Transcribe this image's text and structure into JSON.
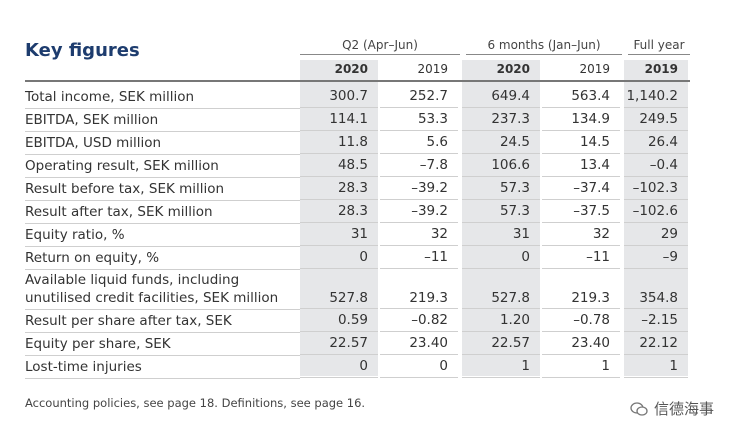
{
  "header": {
    "title": "Key figures",
    "groups": [
      "Q2 (Apr–Jun)",
      "6 months (Jan–Jun)",
      "Full year"
    ],
    "years": [
      "2020",
      "2019",
      "2020",
      "2019",
      "2019"
    ]
  },
  "table": {
    "rows": [
      [
        "Total income, SEK million",
        "300.7",
        "252.7",
        "649.4",
        "563.4",
        "1,140.2"
      ],
      [
        "EBITDA, SEK million",
        "114.1",
        "53.3",
        "237.3",
        "134.9",
        "249.5"
      ],
      [
        "EBITDA, USD million",
        "11.8",
        "5.6",
        "24.5",
        "14.5",
        "26.4"
      ],
      [
        "Operating result, SEK million",
        "48.5",
        "–7.8",
        "106.6",
        "13.4",
        "–0.4"
      ],
      [
        "Result before tax, SEK million",
        "28.3",
        "–39.2",
        "57.3",
        "–37.4",
        "–102.3"
      ],
      [
        "Result after tax, SEK million",
        "28.3",
        "–39.2",
        "57.3",
        "–37.5",
        "–102.6"
      ],
      [
        "Equity ratio, %",
        "31",
        "32",
        "31",
        "32",
        "29"
      ],
      [
        "Return on equity, %",
        "0",
        "–11",
        "0",
        "–11",
        "–9"
      ],
      [
        "Available liquid funds, including\nunutilised credit facilities, SEK million",
        "527.8",
        "219.3",
        "527.8",
        "219.3",
        "354.8"
      ],
      [
        "Result per share after tax, SEK",
        "0.59",
        "–0.82",
        "1.20",
        "–0.78",
        "–2.15"
      ],
      [
        "Equity per share, SEK",
        "22.57",
        "23.40",
        "22.57",
        "23.40",
        "22.12"
      ],
      [
        "Lost-time injuries",
        "0",
        "0",
        "1",
        "1",
        "1"
      ]
    ]
  },
  "footer": {
    "note": "Accounting policies, see page 18. Definitions, see page 16.",
    "watermark": "信德海事"
  }
}
